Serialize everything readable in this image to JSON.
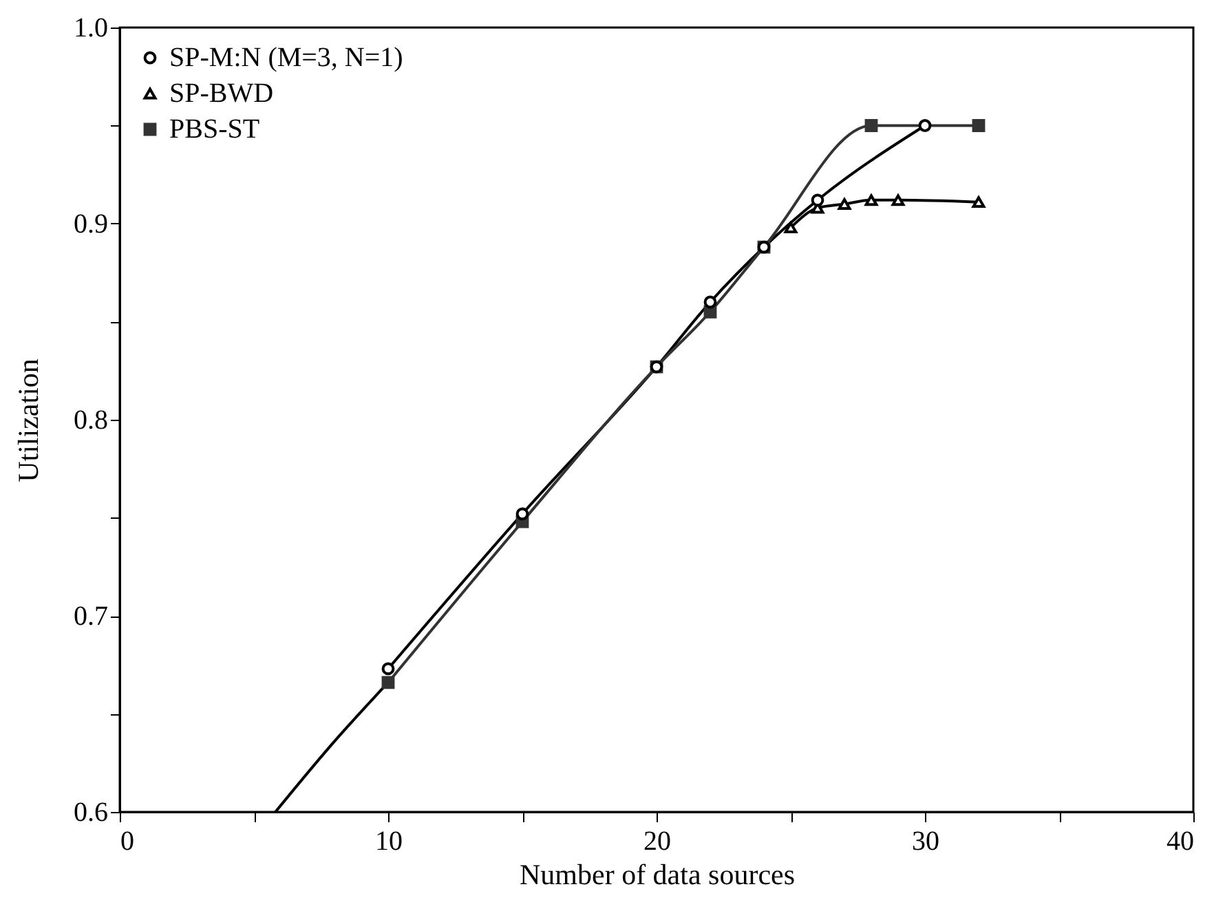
{
  "chart_data": {
    "type": "line",
    "xlabel": "Number of data sources",
    "ylabel": "Utilization",
    "xlim": [
      0,
      40
    ],
    "ylim": [
      0.6,
      1.0
    ],
    "xticks": [
      0,
      {
        "value": 5,
        "label": null
      },
      10,
      {
        "value": 15,
        "label": null
      },
      20,
      {
        "value": 25,
        "label": null
      },
      30,
      {
        "value": 35,
        "label": null
      },
      40
    ],
    "yticks": [
      0.6,
      {
        "value": 0.65,
        "label": null
      },
      0.7,
      {
        "value": 0.75,
        "label": null
      },
      0.8,
      {
        "value": 0.85,
        "label": null
      },
      0.9,
      {
        "value": 0.95,
        "label": null
      },
      {
        "value": 1,
        "label": "1.0"
      }
    ],
    "grid": false,
    "legend": "top left",
    "line_style": "solid",
    "series": [
      {
        "color": "#000000",
        "marker": "none",
        "x": [
          5.8,
          8,
          10
        ],
        "values": [
          0.6,
          0.636,
          0.666
        ]
      },
      {
        "name": "SP-M:N (M=3, N=1)",
        "color": "#000000",
        "marker": "circle",
        "x": [
          10,
          15,
          20,
          22,
          24,
          26,
          30
        ],
        "values": [
          0.673,
          0.752,
          0.827,
          0.86,
          0.888,
          0.912,
          0.95
        ]
      },
      {
        "name": "SP-BWD",
        "color": "#000000",
        "marker": "triangle",
        "x": [
          25,
          26,
          27,
          28,
          29,
          32
        ],
        "values": [
          0.898,
          0.908,
          0.91,
          0.912,
          0.912,
          0.911
        ]
      },
      {
        "name": "PBS-ST",
        "color": "#333333",
        "marker": "square",
        "x": [
          10,
          15,
          20,
          22,
          24,
          28,
          32
        ],
        "values": [
          0.666,
          0.748,
          0.827,
          0.855,
          0.888,
          0.95,
          0.95
        ]
      }
    ]
  }
}
